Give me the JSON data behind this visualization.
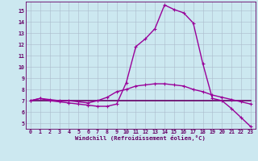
{
  "x": [
    0,
    1,
    2,
    3,
    4,
    5,
    6,
    7,
    8,
    9,
    10,
    11,
    12,
    13,
    14,
    15,
    16,
    17,
    18,
    19,
    20,
    21,
    22,
    23
  ],
  "line1": [
    7.0,
    7.2,
    7.0,
    6.9,
    6.8,
    6.7,
    6.6,
    6.5,
    6.5,
    6.7,
    8.6,
    11.8,
    12.5,
    13.4,
    15.5,
    15.1,
    14.8,
    13.9,
    10.3,
    7.2,
    7.0,
    6.3,
    5.5,
    4.7
  ],
  "line2": [
    7.0,
    7.2,
    7.1,
    7.0,
    7.0,
    6.9,
    6.8,
    7.0,
    7.3,
    7.8,
    8.0,
    8.3,
    8.4,
    8.5,
    8.5,
    8.4,
    8.3,
    8.0,
    7.8,
    7.5,
    7.3,
    7.1,
    6.9,
    6.7
  ],
  "line3": [
    7.0,
    7.0,
    7.0,
    7.0,
    7.0,
    7.0,
    7.0,
    7.0,
    7.0,
    7.0,
    7.0,
    7.0,
    7.0,
    7.0,
    7.0,
    7.0,
    7.0,
    7.0,
    7.0,
    7.0,
    7.0,
    7.0,
    7.0,
    7.0
  ],
  "line_color": "#990099",
  "line2_color": "#990099",
  "line3_color": "#660066",
  "bg_color": "#cce8f0",
  "grid_color": "#aabbcc",
  "axis_color": "#660066",
  "xlabel": "Windchill (Refroidissement éolien,°C)",
  "ylim": [
    4.5,
    15.8
  ],
  "xlim": [
    -0.5,
    23.5
  ],
  "yticks": [
    5,
    6,
    7,
    8,
    9,
    10,
    11,
    12,
    13,
    14,
    15
  ],
  "xticks": [
    0,
    1,
    2,
    3,
    4,
    5,
    6,
    7,
    8,
    9,
    10,
    11,
    12,
    13,
    14,
    15,
    16,
    17,
    18,
    19,
    20,
    21,
    22,
    23
  ]
}
